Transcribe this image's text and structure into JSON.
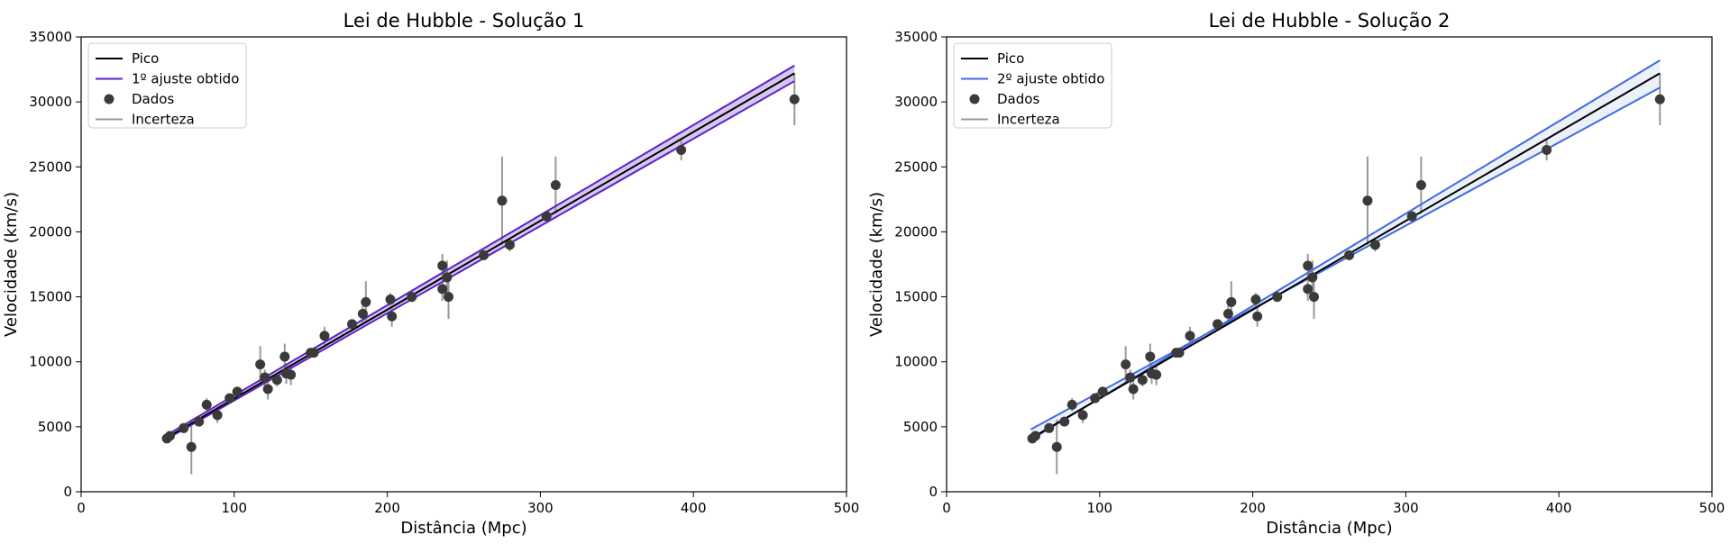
{
  "chart_data": [
    {
      "type": "scatter",
      "title": "Lei de Hubble - Solução 1",
      "xlabel": "Distância (Mpc)",
      "ylabel": "Velocidade (km/s)",
      "xlim": [
        0,
        500
      ],
      "ylim": [
        0,
        35000
      ],
      "xticks": [
        0,
        100,
        200,
        300,
        400,
        500
      ],
      "yticks": [
        0,
        5000,
        10000,
        15000,
        20000,
        25000,
        30000,
        35000
      ],
      "legend_position": "top-left",
      "legend": [
        "Pico",
        "1º ajuste obtido",
        "Dados",
        "Incerteza"
      ],
      "colors": {
        "pico": "#000000",
        "fit": "#5b21c6",
        "data": "#3a3a3a",
        "uncertainty": "#999999",
        "band": "#5b21c6"
      },
      "fit_lines": [
        {
          "role": "pico",
          "x": [
            55,
            466
          ],
          "y": [
            4100,
            32200
          ]
        },
        {
          "role": "fit_upper",
          "x": [
            55,
            466
          ],
          "y": [
            4300,
            32800
          ]
        },
        {
          "role": "fit_lower",
          "x": [
            55,
            466
          ],
          "y": [
            4000,
            31600
          ]
        }
      ],
      "points": [
        {
          "x": 56,
          "y": 4100,
          "err": 150
        },
        {
          "x": 58,
          "y": 4300,
          "err": 150
        },
        {
          "x": 67,
          "y": 4900,
          "err": 200
        },
        {
          "x": 72,
          "y": 3450,
          "err": 2100
        },
        {
          "x": 77,
          "y": 5400,
          "err": 300
        },
        {
          "x": 82,
          "y": 6700,
          "err": 500
        },
        {
          "x": 89,
          "y": 5900,
          "err": 600
        },
        {
          "x": 97,
          "y": 7200,
          "err": 300
        },
        {
          "x": 102,
          "y": 7700,
          "err": 300
        },
        {
          "x": 117,
          "y": 9800,
          "err": 1400
        },
        {
          "x": 120,
          "y": 8800,
          "err": 600
        },
        {
          "x": 122,
          "y": 7900,
          "err": 800
        },
        {
          "x": 128,
          "y": 8600,
          "err": 500
        },
        {
          "x": 133,
          "y": 10400,
          "err": 1000
        },
        {
          "x": 134,
          "y": 9100,
          "err": 800
        },
        {
          "x": 137,
          "y": 9000,
          "err": 800
        },
        {
          "x": 150,
          "y": 10700,
          "err": 300
        },
        {
          "x": 152,
          "y": 10700,
          "err": 300
        },
        {
          "x": 159,
          "y": 12000,
          "err": 700
        },
        {
          "x": 177,
          "y": 12900,
          "err": 300
        },
        {
          "x": 184,
          "y": 13700,
          "err": 700
        },
        {
          "x": 186,
          "y": 14600,
          "err": 1600
        },
        {
          "x": 202,
          "y": 14800,
          "err": 500
        },
        {
          "x": 203,
          "y": 13500,
          "err": 800
        },
        {
          "x": 216,
          "y": 15000,
          "err": 400
        },
        {
          "x": 236,
          "y": 15600,
          "err": 900
        },
        {
          "x": 236,
          "y": 17400,
          "err": 900
        },
        {
          "x": 239,
          "y": 16500,
          "err": 1300
        },
        {
          "x": 240,
          "y": 15000,
          "err": 1700
        },
        {
          "x": 263,
          "y": 18200,
          "err": 300
        },
        {
          "x": 275,
          "y": 22400,
          "err": 3400
        },
        {
          "x": 280,
          "y": 19000,
          "err": 500
        },
        {
          "x": 304,
          "y": 21200,
          "err": 400
        },
        {
          "x": 310,
          "y": 23600,
          "err": 2200
        },
        {
          "x": 392,
          "y": 26300,
          "err": 800
        },
        {
          "x": 466,
          "y": 30200,
          "err": 2000
        }
      ]
    },
    {
      "type": "scatter",
      "title": "Lei de Hubble - Solução 2",
      "xlabel": "Distância (Mpc)",
      "ylabel": "Velocidade (km/s)",
      "xlim": [
        0,
        500
      ],
      "ylim": [
        0,
        35000
      ],
      "xticks": [
        0,
        100,
        200,
        300,
        400,
        500
      ],
      "yticks": [
        0,
        5000,
        10000,
        15000,
        20000,
        25000,
        30000,
        35000
      ],
      "legend_position": "top-left",
      "legend": [
        "Pico",
        "2º ajuste obtido",
        "Dados",
        "Incerteza"
      ],
      "colors": {
        "pico": "#000000",
        "fit": "#4169e1",
        "data": "#3a3a3a",
        "uncertainty": "#999999",
        "band": "#b0c4e8"
      },
      "fit_lines": [
        {
          "role": "pico",
          "x": [
            55,
            466
          ],
          "y": [
            4100,
            32200
          ]
        },
        {
          "role": "fit_upper",
          "x": [
            55,
            466
          ],
          "y": [
            4000,
            33200
          ]
        },
        {
          "role": "fit_lower",
          "x": [
            55,
            466
          ],
          "y": [
            4800,
            31100
          ]
        }
      ],
      "points": [
        {
          "x": 56,
          "y": 4100,
          "err": 150
        },
        {
          "x": 58,
          "y": 4300,
          "err": 150
        },
        {
          "x": 67,
          "y": 4900,
          "err": 200
        },
        {
          "x": 72,
          "y": 3450,
          "err": 2100
        },
        {
          "x": 77,
          "y": 5400,
          "err": 300
        },
        {
          "x": 82,
          "y": 6700,
          "err": 500
        },
        {
          "x": 89,
          "y": 5900,
          "err": 600
        },
        {
          "x": 97,
          "y": 7200,
          "err": 300
        },
        {
          "x": 102,
          "y": 7700,
          "err": 300
        },
        {
          "x": 117,
          "y": 9800,
          "err": 1400
        },
        {
          "x": 120,
          "y": 8800,
          "err": 600
        },
        {
          "x": 122,
          "y": 7900,
          "err": 800
        },
        {
          "x": 128,
          "y": 8600,
          "err": 500
        },
        {
          "x": 133,
          "y": 10400,
          "err": 1000
        },
        {
          "x": 134,
          "y": 9100,
          "err": 800
        },
        {
          "x": 137,
          "y": 9000,
          "err": 800
        },
        {
          "x": 150,
          "y": 10700,
          "err": 300
        },
        {
          "x": 152,
          "y": 10700,
          "err": 300
        },
        {
          "x": 159,
          "y": 12000,
          "err": 700
        },
        {
          "x": 177,
          "y": 12900,
          "err": 300
        },
        {
          "x": 184,
          "y": 13700,
          "err": 700
        },
        {
          "x": 186,
          "y": 14600,
          "err": 1600
        },
        {
          "x": 202,
          "y": 14800,
          "err": 500
        },
        {
          "x": 203,
          "y": 13500,
          "err": 800
        },
        {
          "x": 216,
          "y": 15000,
          "err": 400
        },
        {
          "x": 236,
          "y": 15600,
          "err": 900
        },
        {
          "x": 236,
          "y": 17400,
          "err": 900
        },
        {
          "x": 239,
          "y": 16500,
          "err": 1300
        },
        {
          "x": 240,
          "y": 15000,
          "err": 1700
        },
        {
          "x": 263,
          "y": 18200,
          "err": 300
        },
        {
          "x": 275,
          "y": 22400,
          "err": 3400
        },
        {
          "x": 280,
          "y": 19000,
          "err": 500
        },
        {
          "x": 304,
          "y": 21200,
          "err": 400
        },
        {
          "x": 310,
          "y": 23600,
          "err": 2200
        },
        {
          "x": 392,
          "y": 26300,
          "err": 800
        },
        {
          "x": 466,
          "y": 30200,
          "err": 2000
        }
      ]
    }
  ]
}
